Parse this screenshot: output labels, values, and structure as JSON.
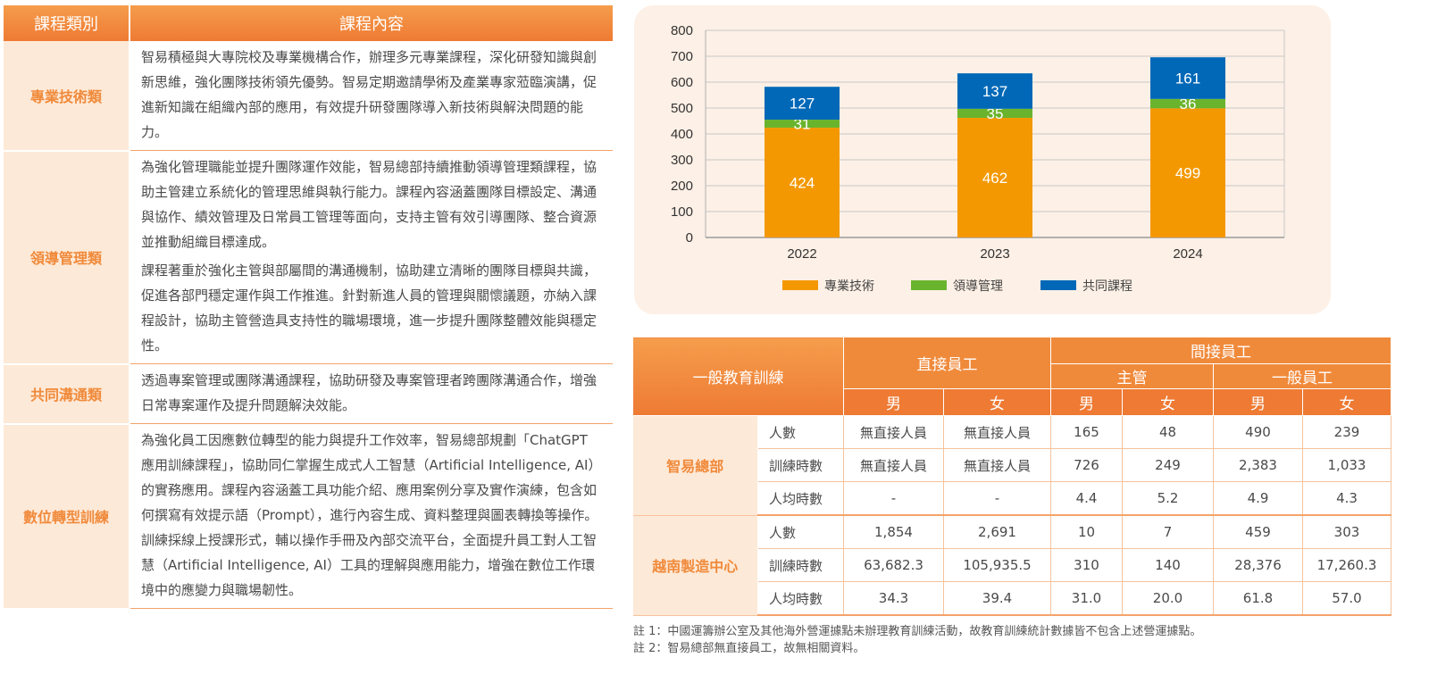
{
  "course_table": {
    "headers": {
      "category": "課程類別",
      "content": "課程內容"
    },
    "rows": [
      {
        "category": "專業技術類",
        "paragraphs": [
          "智易積極與大專院校及專業機構合作，辦理多元專業課程，深化研發知識與創新思維，強化團隊技術領先優勢。智易定期邀請學術及產業專家蒞臨演講，促進新知識在組織內部的應用，有效提升研發團隊導入新技術與解決問題的能力。"
        ]
      },
      {
        "category": "領導管理類",
        "paragraphs": [
          "為強化管理職能並提升團隊運作效能，智易總部持續推動領導管理類課程，協助主管建立系統化的管理思維與執行能力。課程內容涵蓋團隊目標設定、溝通與協作、績效管理及日常員工管理等面向，支持主管有效引導團隊、整合資源並推動組織目標達成。",
          "課程著重於強化主管與部屬間的溝通機制，協助建立清晰的團隊目標與共識，促進各部門穩定運作與工作推進。針對新進人員的管理與關懷議題，亦納入課程設計，協助主管營造具支持性的職場環境，進一步提升團隊整體效能與穩定性。"
        ]
      },
      {
        "category": "共同溝通類",
        "paragraphs": [
          "透過專案管理或團隊溝通課程，協助研發及專案管理者跨團隊溝通合作，增強日常專案運作及提升問題解決效能。"
        ]
      },
      {
        "category": "數位轉型訓練",
        "paragraphs": [
          "為強化員工因應數位轉型的能力與提升工作效率，智易總部規劃「ChatGPT 應用訓練課程」，協助同仁掌握生成式人工智慧（Artificial Intelligence, AI）的實務應用。課程內容涵蓋工具功能介紹、應用案例分享及實作演練，包含如何撰寫有效提示語（Prompt），進行內容生成、資料整理與圖表轉換等操作。訓練採線上授課形式，輔以操作手冊及內部交流平台，全面提升員工對人工智慧（Artificial Intelligence, AI）工具的理解與應用能力，增強在數位工作環境中的應變力與職場韌性。"
        ]
      }
    ]
  },
  "chart_data": {
    "type": "bar",
    "stacked": true,
    "categories": [
      "2022",
      "2023",
      "2024"
    ],
    "series": [
      {
        "name": "專業技術",
        "color": "#f39800",
        "values": [
          424,
          462,
          499
        ]
      },
      {
        "name": "領導管理",
        "color": "#6ab42d",
        "values": [
          31,
          35,
          36
        ]
      },
      {
        "name": "共同課程",
        "color": "#0068b7",
        "values": [
          127,
          137,
          161
        ]
      }
    ],
    "ylim": [
      0,
      800
    ],
    "yticks": [
      0,
      100,
      200,
      300,
      400,
      500,
      600,
      700,
      800
    ],
    "grid": true,
    "legend": "bottom",
    "data_labels": true
  },
  "stats_table": {
    "title": "一般教育訓練",
    "direct": "直接員工",
    "indirect": "間接員工",
    "supervisor": "主管",
    "general": "一般員工",
    "male": "男",
    "female": "女",
    "groups": [
      {
        "org": "智易總部",
        "rows": [
          {
            "metric": "人數",
            "values": [
              "無直接人員",
              "無直接人員",
              "165",
              "48",
              "490",
              "239"
            ]
          },
          {
            "metric": "訓練時數",
            "values": [
              "無直接人員",
              "無直接人員",
              "726",
              "249",
              "2,383",
              "1,033"
            ]
          },
          {
            "metric": "人均時數",
            "values": [
              "-",
              "-",
              "4.4",
              "5.2",
              "4.9",
              "4.3"
            ]
          }
        ]
      },
      {
        "org": "越南製造中心",
        "rows": [
          {
            "metric": "人數",
            "values": [
              "1,854",
              "2,691",
              "10",
              "7",
              "459",
              "303"
            ]
          },
          {
            "metric": "訓練時數",
            "values": [
              "63,682.3",
              "105,935.5",
              "310",
              "140",
              "28,376",
              "17,260.3"
            ]
          },
          {
            "metric": "人均時數",
            "values": [
              "34.3",
              "39.4",
              "31.0",
              "20.0",
              "61.8",
              "57.0"
            ]
          }
        ]
      }
    ]
  },
  "notes": [
    "註 1：中國運籌辦公室及其他海外營運據點未辦理教育訓練活動，故教育訓練統計數據皆不包含上述營運據點。",
    "註 2：智易總部無直接員工，故無相關資料。"
  ]
}
